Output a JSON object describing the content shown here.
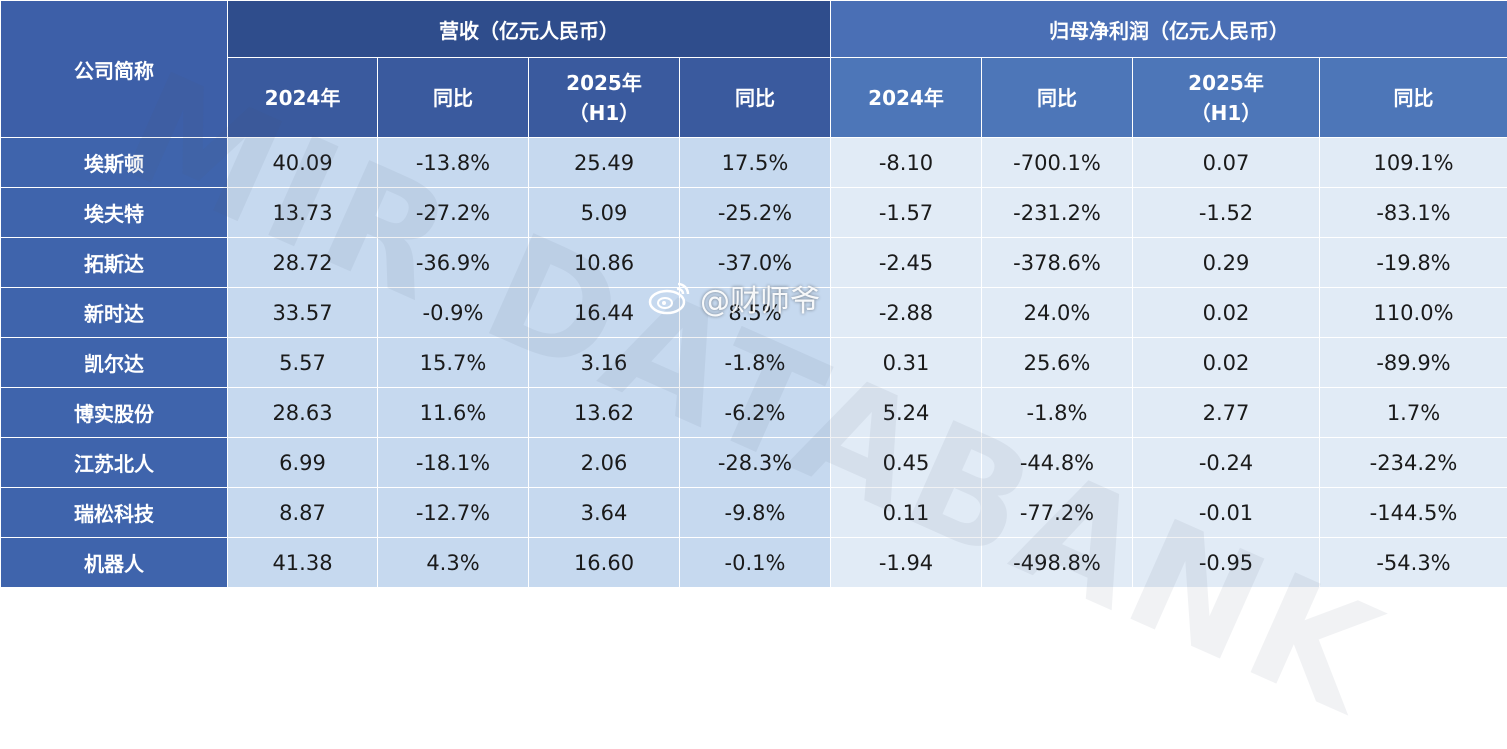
{
  "headers": {
    "company": "公司简称",
    "revenue_group": "营收（亿元人民币）",
    "profit_group": "归母净利润（亿元人民币）",
    "y2024": "2024年",
    "yoy": "同比",
    "y2025_line1": "2025年",
    "y2025_line2": "（H1）"
  },
  "rows": [
    {
      "name": "埃斯顿",
      "rev2024": "40.09",
      "rev2024_yoy": "-13.8%",
      "rev2025": "25.49",
      "rev2025_yoy": "17.5%",
      "np2024": "-8.10",
      "np2024_yoy": "-700.1%",
      "np2025": "0.07",
      "np2025_yoy": "109.1%"
    },
    {
      "name": "埃夫特",
      "rev2024": "13.73",
      "rev2024_yoy": "-27.2%",
      "rev2025": "5.09",
      "rev2025_yoy": "-25.2%",
      "np2024": "-1.57",
      "np2024_yoy": "-231.2%",
      "np2025": "-1.52",
      "np2025_yoy": "-83.1%"
    },
    {
      "name": "拓斯达",
      "rev2024": "28.72",
      "rev2024_yoy": "-36.9%",
      "rev2025": "10.86",
      "rev2025_yoy": "-37.0%",
      "np2024": "-2.45",
      "np2024_yoy": "-378.6%",
      "np2025": "0.29",
      "np2025_yoy": "-19.8%"
    },
    {
      "name": "新时达",
      "rev2024": "33.57",
      "rev2024_yoy": "-0.9%",
      "rev2025": "16.44",
      "rev2025_yoy": "8.5%",
      "np2024": "-2.88",
      "np2024_yoy": "24.0%",
      "np2025": "0.02",
      "np2025_yoy": "110.0%"
    },
    {
      "name": "凯尔达",
      "rev2024": "5.57",
      "rev2024_yoy": "15.7%",
      "rev2025": "3.16",
      "rev2025_yoy": "-1.8%",
      "np2024": "0.31",
      "np2024_yoy": "25.6%",
      "np2025": "0.02",
      "np2025_yoy": "-89.9%"
    },
    {
      "name": "博实股份",
      "rev2024": "28.63",
      "rev2024_yoy": "11.6%",
      "rev2025": "13.62",
      "rev2025_yoy": "-6.2%",
      "np2024": "5.24",
      "np2024_yoy": "-1.8%",
      "np2025": "2.77",
      "np2025_yoy": "1.7%"
    },
    {
      "name": "江苏北人",
      "rev2024": "6.99",
      "rev2024_yoy": "-18.1%",
      "rev2025": "2.06",
      "rev2025_yoy": "-28.3%",
      "np2024": "0.45",
      "np2024_yoy": "-44.8%",
      "np2025": "-0.24",
      "np2025_yoy": "-234.2%"
    },
    {
      "name": "瑞松科技",
      "rev2024": "8.87",
      "rev2024_yoy": "-12.7%",
      "rev2025": "3.64",
      "rev2025_yoy": "-9.8%",
      "np2024": "0.11",
      "np2024_yoy": "-77.2%",
      "np2025": "-0.01",
      "np2025_yoy": "-144.5%"
    },
    {
      "name": "机器人",
      "rev2024": "41.38",
      "rev2024_yoy": "4.3%",
      "rev2025": "16.60",
      "rev2025_yoy": "-0.1%",
      "np2024": "-1.94",
      "np2024_yoy": "-498.8%",
      "np2025": "-0.95",
      "np2025_yoy": "-54.3%"
    }
  ],
  "watermark": "MIR DATABANK",
  "weibo_watermark": "@财师爷",
  "colors": {
    "header_dark": "#2f4d8c",
    "header_light": "#4a6fb5",
    "name_col": "#3f64ac",
    "revenue_cells": "#c6d9ef",
    "profit_cells": "#e1ebf6"
  }
}
